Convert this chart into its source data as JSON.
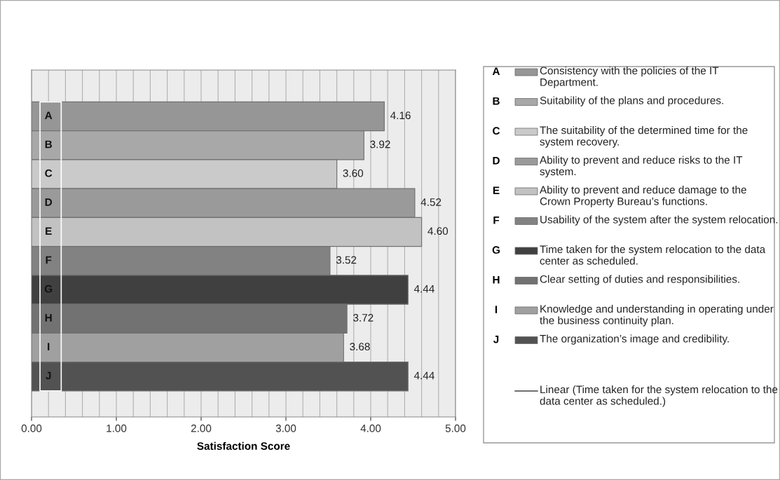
{
  "chart_data": {
    "type": "bar",
    "orientation": "horizontal",
    "xlabel": "Satisfaction Score",
    "categories": [
      "A",
      "B",
      "C",
      "D",
      "E",
      "F",
      "G",
      "H",
      "I",
      "J"
    ],
    "series": [
      {
        "name": "Consistency with the policies of the IT Department.",
        "color": "#969696",
        "values": [
          4.16,
          null,
          null,
          null,
          null,
          null,
          null,
          null,
          null,
          null
        ],
        "value_labels": [
          "4.16",
          null,
          null,
          null,
          null,
          null,
          null,
          null,
          null,
          null
        ]
      },
      {
        "name": "Suitability of the plans and procedures.",
        "color": "#a8a8a8",
        "values": [
          null,
          3.92,
          null,
          null,
          null,
          null,
          null,
          null,
          null,
          null
        ],
        "value_labels": [
          null,
          "3.92",
          null,
          null,
          null,
          null,
          null,
          null,
          null,
          null
        ]
      },
      {
        "name": "The suitability of the determined time for the system recovery.",
        "color": "#cacaca",
        "values": [
          null,
          null,
          3.6,
          null,
          null,
          null,
          null,
          null,
          null,
          null
        ],
        "value_labels": [
          null,
          null,
          "3.60",
          null,
          null,
          null,
          null,
          null,
          null,
          null
        ]
      },
      {
        "name": "Ability to prevent and reduce risks to the IT system.",
        "color": "#9a9a9a",
        "values": [
          null,
          null,
          null,
          4.52,
          null,
          null,
          null,
          null,
          null,
          null
        ],
        "value_labels": [
          null,
          null,
          null,
          "4.52",
          null,
          null,
          null,
          null,
          null,
          null
        ]
      },
      {
        "name": "Ability to prevent and reduce damage to the Crown Property Bureau’s functions.",
        "color": "#c2c2c2",
        "values": [
          null,
          null,
          null,
          null,
          4.6,
          null,
          null,
          null,
          null,
          null
        ],
        "value_labels": [
          null,
          null,
          null,
          null,
          "4.60",
          null,
          null,
          null,
          null,
          null
        ]
      },
      {
        "name": "Usability of the system after the system relocation.",
        "color": "#828282",
        "values": [
          null,
          null,
          null,
          null,
          null,
          3.52,
          null,
          null,
          null,
          null
        ],
        "value_labels": [
          null,
          null,
          null,
          null,
          null,
          "3.52",
          null,
          null,
          null,
          null
        ]
      },
      {
        "name": "Time taken for the system relocation to the data center as scheduled.",
        "color": "#404040",
        "values": [
          null,
          null,
          null,
          null,
          null,
          null,
          4.44,
          null,
          null,
          null
        ],
        "value_labels": [
          null,
          null,
          null,
          null,
          null,
          null,
          "4.44",
          null,
          null,
          null
        ]
      },
      {
        "name": "Clear setting of duties and responsibilities.",
        "color": "#727272",
        "values": [
          null,
          null,
          null,
          null,
          null,
          null,
          null,
          3.72,
          null,
          null
        ],
        "value_labels": [
          null,
          null,
          null,
          null,
          null,
          null,
          null,
          "3.72",
          null,
          null
        ]
      },
      {
        "name": "Knowledge and understanding in operating under the business continuity plan.",
        "color": "#a0a0a0",
        "values": [
          null,
          null,
          null,
          null,
          null,
          null,
          null,
          null,
          3.68,
          null
        ],
        "value_labels": [
          null,
          null,
          null,
          null,
          null,
          null,
          null,
          null,
          "3.68",
          null
        ]
      },
      {
        "name": "The organization’s image and credibility.",
        "color": "#525252",
        "values": [
          null,
          null,
          null,
          null,
          null,
          null,
          null,
          null,
          null,
          4.44
        ],
        "value_labels": [
          null,
          null,
          null,
          null,
          null,
          null,
          null,
          null,
          null,
          "4.44"
        ]
      },
      {
        "type": "line",
        "name": "Linear (Time taken for the system relocation to the data center as scheduled.)",
        "color": "#404040",
        "values": [
          null,
          null,
          null,
          null,
          null,
          null,
          null,
          null,
          null,
          null
        ]
      }
    ],
    "xlim": [
      0,
      5
    ],
    "xticks": [
      {
        "value": 0,
        "label": "0.00"
      },
      {
        "value": 1,
        "label": "1.00"
      },
      {
        "value": 2,
        "label": "2.00"
      },
      {
        "value": 3,
        "label": "3.00"
      },
      {
        "value": 4,
        "label": "4.00"
      },
      {
        "value": 5,
        "label": "5.00"
      }
    ],
    "tick_labels": "x",
    "grid": "x",
    "legend": "right"
  }
}
